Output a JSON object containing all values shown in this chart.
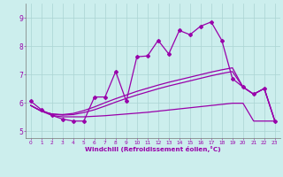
{
  "xlabel": "Windchill (Refroidissement éolien,°C)",
  "xlim": [
    -0.5,
    23.5
  ],
  "ylim": [
    4.75,
    9.5
  ],
  "yticks": [
    5,
    6,
    7,
    8,
    9
  ],
  "xticks": [
    0,
    1,
    2,
    3,
    4,
    5,
    6,
    7,
    8,
    9,
    10,
    11,
    12,
    13,
    14,
    15,
    16,
    17,
    18,
    19,
    20,
    21,
    22,
    23
  ],
  "background_color": "#cceeed",
  "grid_color": "#aad4d3",
  "line_color": "#9900aa",
  "line1_x": [
    0,
    1,
    2,
    3,
    4,
    5,
    6,
    7,
    8,
    9,
    10,
    11,
    12,
    13,
    14,
    15,
    16,
    17,
    18,
    19,
    20,
    21,
    22,
    23
  ],
  "line1_y": [
    6.05,
    5.75,
    5.55,
    5.42,
    5.35,
    5.35,
    6.2,
    6.2,
    7.1,
    6.05,
    7.62,
    7.65,
    8.2,
    7.72,
    8.55,
    8.4,
    8.7,
    8.85,
    8.2,
    6.85,
    6.55,
    6.3,
    6.5,
    5.35
  ],
  "line2_x": [
    0,
    1,
    2,
    3,
    4,
    5,
    6,
    7,
    8,
    9,
    10,
    11,
    12,
    13,
    14,
    15,
    16,
    17,
    18,
    19,
    20,
    21,
    22,
    23
  ],
  "line2_y": [
    5.9,
    5.7,
    5.55,
    5.5,
    5.5,
    5.5,
    5.52,
    5.54,
    5.57,
    5.6,
    5.63,
    5.66,
    5.7,
    5.74,
    5.78,
    5.82,
    5.86,
    5.9,
    5.94,
    5.98,
    5.98,
    5.35,
    5.35,
    5.35
  ],
  "line3_x": [
    0,
    1,
    2,
    3,
    4,
    5,
    6,
    7,
    8,
    9,
    10,
    11,
    12,
    13,
    14,
    15,
    16,
    17,
    18,
    19,
    20,
    21,
    22,
    23
  ],
  "line3_y": [
    5.9,
    5.7,
    5.6,
    5.56,
    5.58,
    5.65,
    5.75,
    5.88,
    6.02,
    6.15,
    6.27,
    6.38,
    6.49,
    6.59,
    6.68,
    6.77,
    6.86,
    6.95,
    7.03,
    7.1,
    6.55,
    6.3,
    6.5,
    5.35
  ],
  "line4_x": [
    0,
    1,
    2,
    3,
    4,
    5,
    6,
    7,
    8,
    9,
    10,
    11,
    12,
    13,
    14,
    15,
    16,
    17,
    18,
    19,
    20,
    21,
    22,
    23
  ],
  "line4_y": [
    5.9,
    5.7,
    5.6,
    5.58,
    5.62,
    5.72,
    5.85,
    6.0,
    6.14,
    6.27,
    6.4,
    6.51,
    6.62,
    6.72,
    6.81,
    6.9,
    6.99,
    7.08,
    7.16,
    7.23,
    6.55,
    6.3,
    6.5,
    5.35
  ]
}
